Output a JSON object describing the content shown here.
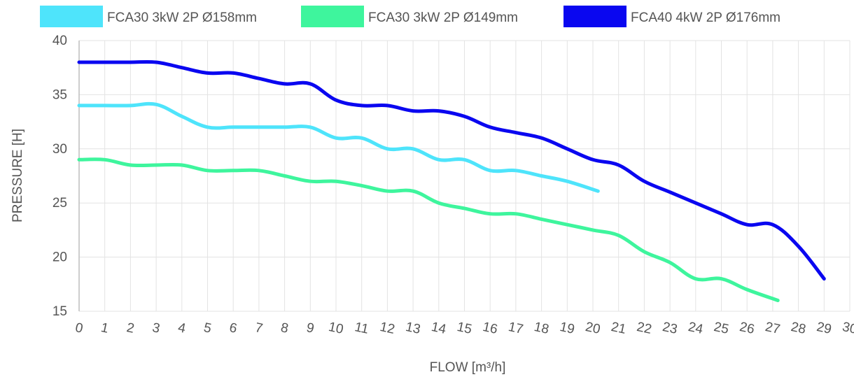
{
  "chart_data": {
    "type": "line",
    "xlabel": "FLOW [m³/h]",
    "ylabel": "PRESSURE [H]",
    "xlim": [
      0,
      30
    ],
    "ylim": [
      15,
      40
    ],
    "grid": true,
    "legend_position": "top",
    "x_ticks": [
      0,
      1,
      2,
      3,
      4,
      5,
      6,
      7,
      8,
      9,
      10,
      11,
      12,
      13,
      14,
      15,
      16,
      17,
      18,
      19,
      20,
      21,
      22,
      23,
      24,
      25,
      26,
      27,
      28,
      29,
      30
    ],
    "y_ticks": [
      15,
      20,
      25,
      30,
      35,
      40
    ],
    "series": [
      {
        "name": "FCA30 3kW 2P Ø158mm",
        "color": "#4ee4fb",
        "x": [
          0,
          1,
          2,
          3,
          4,
          5,
          6,
          7,
          8,
          9,
          10,
          11,
          12,
          13,
          14,
          15,
          16,
          17,
          18,
          19,
          20.2
        ],
        "y": [
          34,
          34,
          34,
          34.1,
          33,
          32,
          32,
          32,
          32,
          32,
          31,
          31,
          30,
          30,
          29,
          29,
          28,
          28,
          27.5,
          27,
          26.1
        ]
      },
      {
        "name": "FCA30 3kW 2P Ø149mm",
        "color": "#3ef59d",
        "x": [
          0,
          1,
          2,
          3,
          4,
          5,
          6,
          7,
          8,
          9,
          10,
          11,
          12,
          13,
          14,
          15,
          16,
          17,
          18,
          19,
          20,
          21,
          22,
          23,
          24,
          25,
          26,
          27.2
        ],
        "y": [
          29,
          29,
          28.5,
          28.5,
          28.5,
          28,
          28,
          28,
          27.5,
          27,
          27,
          26.6,
          26.1,
          26.1,
          25,
          24.5,
          24,
          24,
          23.5,
          23,
          22.5,
          22,
          20.5,
          19.5,
          18,
          18,
          17,
          16
        ]
      },
      {
        "name": "FCA40 4kW 2P Ø176mm",
        "color": "#0a07f0",
        "x": [
          0,
          1,
          2,
          3,
          4,
          5,
          6,
          7,
          8,
          9,
          10,
          11,
          12,
          13,
          14,
          15,
          16,
          17,
          18,
          19,
          20,
          21,
          22,
          23,
          24,
          25,
          26,
          27,
          28,
          29
        ],
        "y": [
          38,
          38,
          38,
          38,
          37.5,
          37,
          37,
          36.5,
          36,
          36,
          34.5,
          34,
          34,
          33.5,
          33.5,
          33,
          32,
          31.5,
          31,
          30,
          29,
          28.5,
          27,
          26,
          25,
          24,
          23,
          23,
          21,
          18
        ]
      }
    ]
  }
}
